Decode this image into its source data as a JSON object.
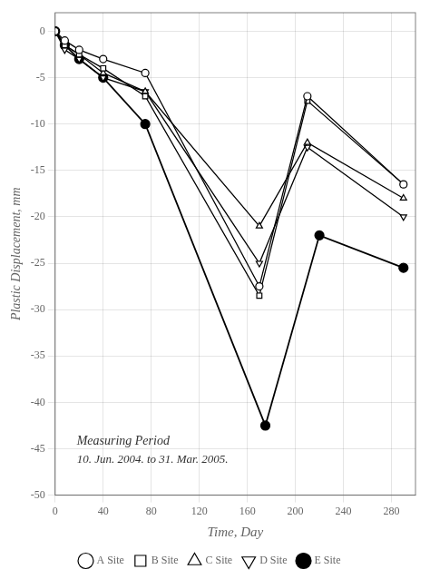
{
  "chart_data": {
    "type": "line",
    "xlabel": "Time, Day",
    "ylabel": "Plastic Displacement, mm",
    "annotations": [
      "Measuring Period",
      "10. Jun. 2004. to 31. Mar. 2005."
    ],
    "xlim": [
      0,
      300
    ],
    "ylim": [
      -50,
      2
    ],
    "xticks": [
      0,
      40,
      80,
      120,
      160,
      200,
      240,
      280
    ],
    "yticks": [
      0,
      -5,
      -10,
      -15,
      -20,
      -25,
      -30,
      -35,
      -40,
      -45,
      -50
    ],
    "grid": true,
    "legend": "bottom",
    "series": [
      {
        "name": "A Site",
        "color": "black",
        "marker": "circle-open",
        "x": [
          0,
          8,
          20,
          40,
          75,
          170,
          210,
          290
        ],
        "values": [
          0,
          -1.0,
          -2.0,
          -3.0,
          -4.5,
          -27.5,
          -7.0,
          -16.5
        ]
      },
      {
        "name": "B Site",
        "color": "black",
        "marker": "square-open",
        "x": [
          0,
          8,
          20,
          40,
          75,
          170,
          210,
          290
        ],
        "values": [
          0,
          -1.5,
          -2.5,
          -4.0,
          -7.0,
          -28.5,
          -7.5,
          -16.5
        ]
      },
      {
        "name": "C Site",
        "color": "black",
        "marker": "triangle-open",
        "x": [
          0,
          8,
          20,
          40,
          75,
          170,
          210,
          290
        ],
        "values": [
          0,
          -1.5,
          -2.5,
          -4.5,
          -6.5,
          -21.0,
          -12.0,
          -18.0
        ]
      },
      {
        "name": "D Site",
        "color": "black",
        "marker": "triangle-down-open",
        "x": [
          0,
          8,
          20,
          40,
          75,
          170,
          210,
          290
        ],
        "values": [
          0,
          -2.0,
          -3.0,
          -5.0,
          -6.5,
          -25.0,
          -12.5,
          -20.0
        ]
      },
      {
        "name": "E Site",
        "color": "black",
        "marker": "circle",
        "x": [
          0,
          8,
          20,
          40,
          75,
          175,
          220,
          290
        ],
        "values": [
          0,
          -1.5,
          -3.0,
          -5.0,
          -10.0,
          -42.5,
          -22.0,
          -25.5
        ]
      }
    ]
  }
}
